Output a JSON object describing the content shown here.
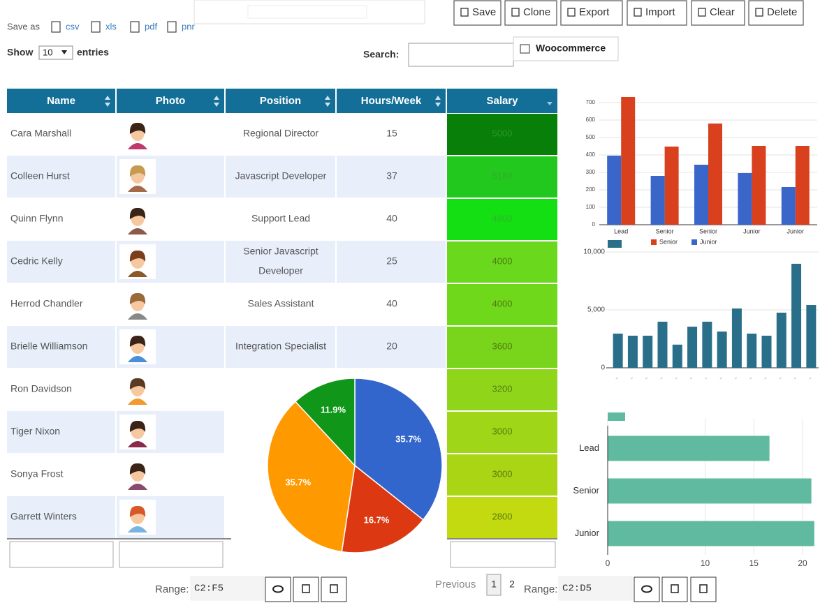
{
  "toolbar": {
    "buttons": [
      "Save",
      "Clone",
      "Export",
      "Import",
      "Clear",
      "Delete"
    ],
    "save_as": "Save as",
    "formats": [
      "csv",
      "xls",
      "pdf",
      "pnr"
    ],
    "show": "Show",
    "entries_value": "10",
    "entries": "entries",
    "search": "Search:",
    "woocommerce": "Woocommerce"
  },
  "table": {
    "columns": [
      "Name",
      "Photo",
      "Position",
      "Hours/Week",
      "Salary"
    ],
    "rows": [
      {
        "name": "Cara Marshall",
        "position": "Regional Director",
        "hours": 15,
        "salary": 5000
      },
      {
        "name": "Colleen Hurst",
        "position": "Javascript Developer",
        "hours": 37,
        "salary": 5180
      },
      {
        "name": "Quinn Flynn",
        "position": "Support Lead",
        "hours": 40,
        "salary": 4800
      },
      {
        "name": "Cedric Kelly",
        "position": [
          "Senior Javascript",
          "Developer"
        ],
        "hours": 25,
        "salary": 4000
      },
      {
        "name": "Herrod Chandler",
        "position": "Sales Assistant",
        "hours": 40,
        "salary": 4000
      },
      {
        "name": "Brielle Williamson",
        "position": "Integration Specialist",
        "hours": 20,
        "salary": 3600
      },
      {
        "name": "Ron Davidson",
        "salary": 3200
      },
      {
        "name": "Tiger Nixon",
        "salary": 3000
      },
      {
        "name": "Sonya Frost",
        "salary": 3000
      },
      {
        "name": "Garrett Winters",
        "salary": 2800
      }
    ],
    "salary_colors": [
      "#087f08",
      "#22c81d",
      "#14df12",
      "#6ad81c",
      "#70d81b",
      "#78d51b",
      "#8fd61b",
      "#9fd617",
      "#aad515",
      "#c3da10"
    ]
  },
  "footer": {
    "range_label": "Range:",
    "range1": "C2:F5",
    "previous": "Previous",
    "pages": [
      "1",
      "2"
    ],
    "range2": "C2:D5"
  },
  "chart_data": [
    {
      "type": "pie",
      "values": [
        35.7,
        16.7,
        35.7,
        11.9
      ],
      "value_labels": [
        "35.7%",
        "16.7%",
        "35.7%",
        "11.9%"
      ],
      "colors": [
        "#3366cc",
        "#dc3912",
        "#ff9900",
        "#109618"
      ]
    },
    {
      "type": "bar",
      "categories": [
        "Lead",
        "Senior",
        "Senior",
        "Junior",
        "Junior"
      ],
      "series": [
        {
          "name": "Senior",
          "color": "#d9401e",
          "values": [
            732,
            448,
            580,
            452,
            452
          ]
        },
        {
          "name": "Junior",
          "color": "#3a66c9",
          "values": [
            396,
            280,
            344,
            296,
            216
          ]
        }
      ],
      "ylim": [
        0,
        750
      ],
      "yticks": [
        0,
        100,
        200,
        300,
        400,
        500,
        600,
        700
      ],
      "grid": true
    },
    {
      "type": "bar",
      "categories": [
        null,
        null,
        null,
        null,
        null,
        null,
        null,
        null,
        null,
        null,
        null,
        null,
        null,
        null
      ],
      "values": [
        2950,
        2770,
        2770,
        3980,
        2000,
        3550,
        3980,
        3130,
        5120,
        2950,
        2770,
        4760,
        8980,
        5420
      ],
      "color": "#2a6f8a",
      "ylim": [
        0,
        10000
      ],
      "yticks": [
        0,
        {
          "value": 5000,
          "label": "5,000"
        },
        {
          "value": 10000,
          "label": "10,000"
        }
      ],
      "grid": true
    },
    {
      "type": "barh",
      "categories": [
        "Lead",
        "Senior",
        "Junior"
      ],
      "values": [
        16.6,
        20.9,
        21.2
      ],
      "color": "#5fba9f",
      "xlim": [
        0,
        21.5
      ],
      "xticks": [
        0,
        10,
        15,
        20
      ],
      "grid": true
    }
  ]
}
